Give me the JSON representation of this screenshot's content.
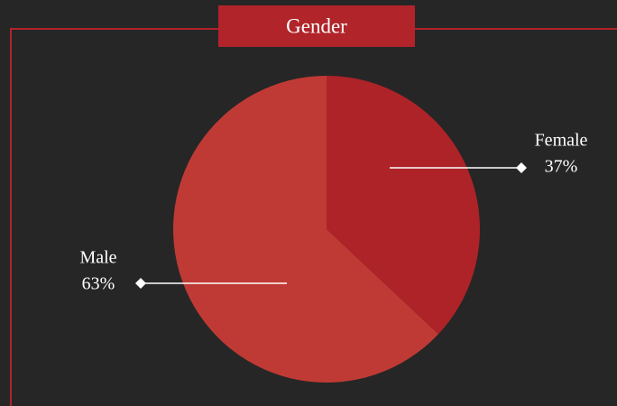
{
  "chart_data": {
    "type": "pie",
    "title": "Gender",
    "categories": [
      "Female",
      "Male"
    ],
    "values": [
      37,
      63
    ],
    "value_labels": [
      "37%",
      "63%"
    ],
    "colors": [
      "#ad2328",
      "#c03a35"
    ]
  }
}
